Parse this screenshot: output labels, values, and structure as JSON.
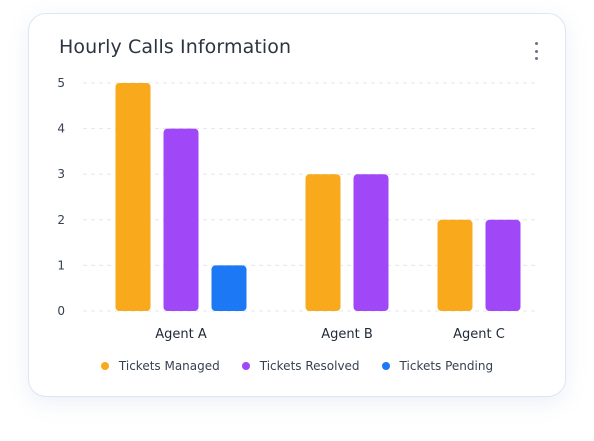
{
  "card": {
    "title": "Hourly Calls Information",
    "menu_icon": "vertical-ellipsis-icon"
  },
  "colors": {
    "tickets_managed": "#F8AA1C",
    "tickets_resolved": "#A048F8",
    "tickets_pending": "#1C78F4",
    "grid": "#e5e7eb",
    "axis_text": "#374151"
  },
  "chart_data": {
    "type": "bar",
    "title": "Hourly Calls Information",
    "categories": [
      "Agent A",
      "Agent B",
      "Agent C"
    ],
    "series": [
      {
        "name": "Tickets Managed",
        "values": [
          5,
          3,
          2
        ],
        "color": "#F8AA1C"
      },
      {
        "name": "Tickets Resolved",
        "values": [
          4,
          3,
          2
        ],
        "color": "#A048F8"
      },
      {
        "name": "Tickets Pending",
        "values": [
          1,
          0,
          0
        ],
        "color": "#1C78F4"
      }
    ],
    "xlabel": "",
    "ylabel": "",
    "ylim": [
      0,
      5
    ],
    "yticks": [
      "0",
      "1",
      "2",
      "3",
      "4",
      "5"
    ],
    "grid": true,
    "legend_position": "bottom-center"
  }
}
